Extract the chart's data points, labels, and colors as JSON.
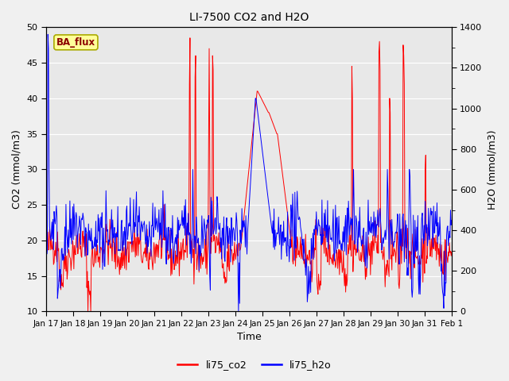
{
  "title": "LI-7500 CO2 and H2O",
  "xlabel": "Time",
  "ylabel_left": "CO2 (mmol/m3)",
  "ylabel_right": "H2O (mmol/m3)",
  "ylim_left": [
    10,
    50
  ],
  "ylim_right": [
    0,
    1400
  ],
  "yticks_left": [
    10,
    15,
    20,
    25,
    30,
    35,
    40,
    45,
    50
  ],
  "yticks_right": [
    0,
    200,
    400,
    600,
    800,
    1000,
    1200,
    1400
  ],
  "xtick_labels": [
    "Jan 17",
    "Jan 18",
    "Jan 19",
    "Jan 20",
    "Jan 21",
    "Jan 22",
    "Jan 23",
    "Jan 24",
    "Jan 25",
    "Jan 26",
    "Jan 27",
    "Jan 28",
    "Jan 29",
    "Jan 30",
    "Jan 31",
    "Feb 1"
  ],
  "color_co2": "#ff0000",
  "color_h2o": "#0000ff",
  "linewidth": 0.7,
  "plot_bg_color": "#e8e8e8",
  "fig_bg_color": "#f0f0f0",
  "annotation_text": "BA_flux",
  "legend_labels": [
    "li75_co2",
    "li75_h2o"
  ],
  "seed": 42
}
